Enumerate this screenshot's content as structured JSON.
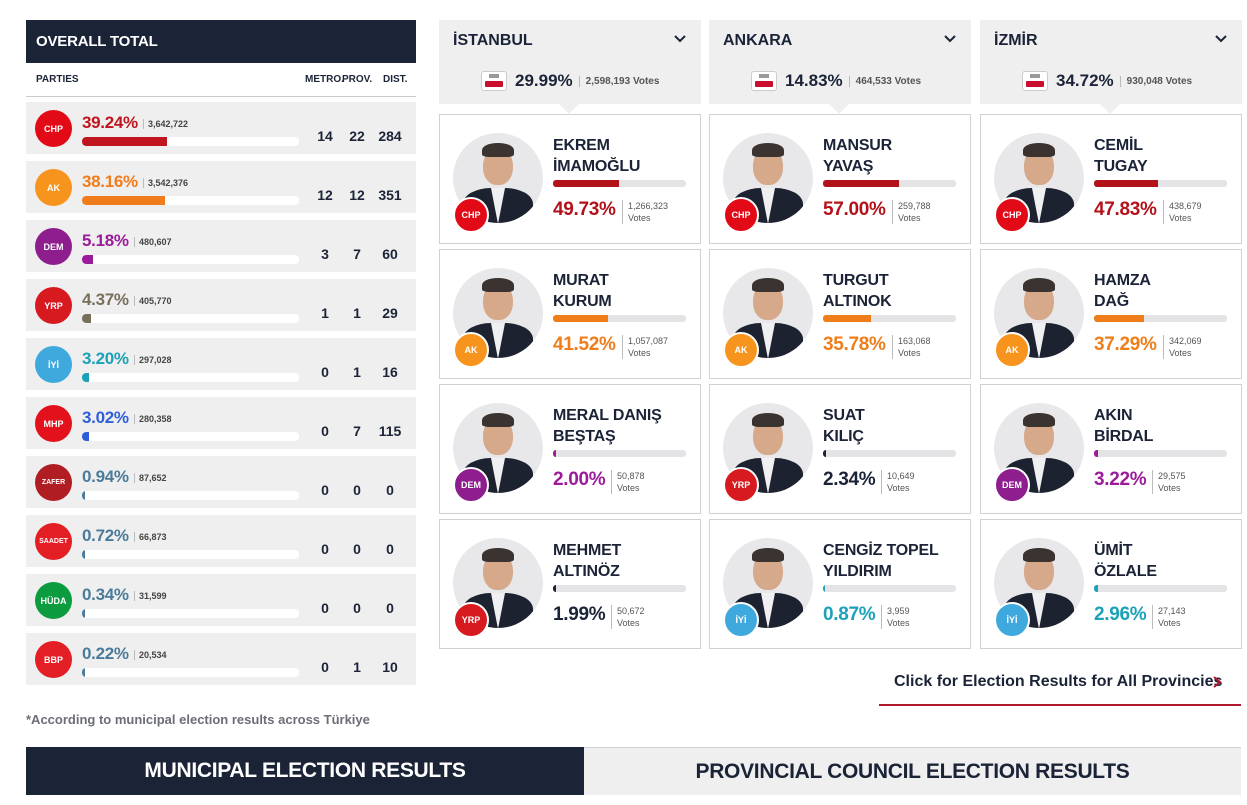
{
  "overall": {
    "title": "OVERALL TOTAL",
    "col_parties": "PARTIES",
    "col_metro": "METRO.",
    "col_prov": "PROV.",
    "col_dist": "DIST.",
    "parties": [
      {
        "logo": "CHP",
        "logo_color": "#e30a17",
        "pct": "39.24%",
        "votes": "3,642,722",
        "share": 0.3924,
        "color": "#c0141e",
        "metro": "14",
        "prov": "22",
        "dist": "284"
      },
      {
        "logo": "AK",
        "logo_color": "#f7941d",
        "pct": "38.16%",
        "votes": "3,542,376",
        "share": 0.3816,
        "color": "#f07c1b",
        "metro": "12",
        "prov": "12",
        "dist": "351"
      },
      {
        "logo": "DEM",
        "logo_color": "#8e1d8e",
        "pct": "5.18%",
        "votes": "480,607",
        "share": 0.0518,
        "color": "#9b1b9b",
        "metro": "3",
        "prov": "7",
        "dist": "60"
      },
      {
        "logo": "YRP",
        "logo_color": "#d71920",
        "pct": "4.37%",
        "votes": "405,770",
        "share": 0.0437,
        "color": "#77705c",
        "metro": "1",
        "prov": "1",
        "dist": "29"
      },
      {
        "logo": "İYİ",
        "logo_color": "#3fa9dd",
        "pct": "3.20%",
        "votes": "297,028",
        "share": 0.032,
        "color": "#1ba1b8",
        "metro": "0",
        "prov": "1",
        "dist": "16"
      },
      {
        "logo": "MHP",
        "logo_color": "#e2111b",
        "pct": "3.02%",
        "votes": "280,358",
        "share": 0.0302,
        "color": "#2f5fd8",
        "metro": "0",
        "prov": "7",
        "dist": "115"
      },
      {
        "logo": "ZAFER",
        "logo_color": "#b01e24",
        "pct": "0.94%",
        "votes": "87,652",
        "share": 0.0094,
        "color": "#4b7b9a",
        "metro": "0",
        "prov": "0",
        "dist": "0"
      },
      {
        "logo": "SAADET",
        "logo_color": "#e31e24",
        "pct": "0.72%",
        "votes": "66,873",
        "share": 0.0072,
        "color": "#4b7b9a",
        "metro": "0",
        "prov": "0",
        "dist": "0"
      },
      {
        "logo": "HÜDA",
        "logo_color": "#0c9b3f",
        "pct": "0.34%",
        "votes": "31,599",
        "share": 0.0034,
        "color": "#4b7b9a",
        "metro": "0",
        "prov": "0",
        "dist": "0"
      },
      {
        "logo": "BBP",
        "logo_color": "#e31e24",
        "pct": "0.22%",
        "votes": "20,534",
        "share": 0.0022,
        "color": "#4b7b9a",
        "metro": "0",
        "prov": "1",
        "dist": "10"
      }
    ],
    "footnote": "*According to municipal election results across Türkiye"
  },
  "cities": [
    {
      "name": "İSTANBUL",
      "pct": "29.99%",
      "votes": "2,598,193 Votes",
      "candidates": [
        {
          "line1": "EKREM",
          "line2": "İMAMOĞLU",
          "pct": "49.73%",
          "votes": "1,266,323 Votes",
          "share": 0.4973,
          "color": "#b4121b",
          "party": "CHP",
          "party_color": "#e30a17"
        },
        {
          "line1": "MURAT",
          "line2": "KURUM",
          "pct": "41.52%",
          "votes": "1,057,087 Votes",
          "share": 0.4152,
          "color": "#ef7d1a",
          "party": "AK",
          "party_color": "#f7941d"
        },
        {
          "line1": "MERAL DANIŞ",
          "line2": "BEŞTAŞ",
          "pct": "2.00%",
          "votes": "50,878 Votes",
          "share": 0.02,
          "color": "#9b1b9b",
          "party": "DEM",
          "party_color": "#8e1d8e"
        },
        {
          "line1": "MEHMET",
          "line2": "ALTINÖZ",
          "pct": "1.99%",
          "votes": "50,672 Votes",
          "share": 0.0199,
          "color": "#1b2337",
          "party": "YRP",
          "party_color": "#d71920"
        }
      ]
    },
    {
      "name": "ANKARA",
      "pct": "14.83%",
      "votes": "464,533 Votes",
      "candidates": [
        {
          "line1": "MANSUR",
          "line2": "YAVAŞ",
          "pct": "57.00%",
          "votes": "259,788 Votes",
          "share": 0.57,
          "color": "#b4121b",
          "party": "CHP",
          "party_color": "#e30a17"
        },
        {
          "line1": "TURGUT",
          "line2": "ALTINOK",
          "pct": "35.78%",
          "votes": "163,068 Votes",
          "share": 0.3578,
          "color": "#ef7d1a",
          "party": "AK",
          "party_color": "#f7941d"
        },
        {
          "line1": "SUAT",
          "line2": "KILIÇ",
          "pct": "2.34%",
          "votes": "10,649 Votes",
          "share": 0.0234,
          "color": "#1b2337",
          "party": "YRP",
          "party_color": "#d71920"
        },
        {
          "line1": "CENGİZ TOPEL",
          "line2": "YILDIRIM",
          "pct": "0.87%",
          "votes": "3,959 Votes",
          "share": 0.0087,
          "color": "#1ba1b8",
          "party": "İYİ",
          "party_color": "#3fa9dd"
        }
      ]
    },
    {
      "name": "İZMİR",
      "pct": "34.72%",
      "votes": "930,048 Votes",
      "candidates": [
        {
          "line1": "CEMİL",
          "line2": "TUGAY",
          "pct": "47.83%",
          "votes": "438,679 Votes",
          "share": 0.4783,
          "color": "#b4121b",
          "party": "CHP",
          "party_color": "#e30a17"
        },
        {
          "line1": "HAMZA",
          "line2": "DAĞ",
          "pct": "37.29%",
          "votes": "342,069 Votes",
          "share": 0.3729,
          "color": "#ef7d1a",
          "party": "AK",
          "party_color": "#f7941d"
        },
        {
          "line1": "AKIN",
          "line2": "BİRDAL",
          "pct": "3.22%",
          "votes": "29,575 Votes",
          "share": 0.0322,
          "color": "#9b1b9b",
          "party": "DEM",
          "party_color": "#8e1d8e"
        },
        {
          "line1": "ÜMİT",
          "line2": "ÖZLALE",
          "pct": "2.96%",
          "votes": "27,143 Votes",
          "share": 0.0296,
          "color": "#1ba1b8",
          "party": "İYİ",
          "party_color": "#3fa9dd"
        }
      ]
    }
  ],
  "all_provinces_link": "Click for Election Results for All Provincies",
  "tabs": {
    "municipal": "MUNICIPAL ELECTION RESULTS",
    "provincial": "PROVINCIAL COUNCIL ELECTION RESULTS"
  }
}
